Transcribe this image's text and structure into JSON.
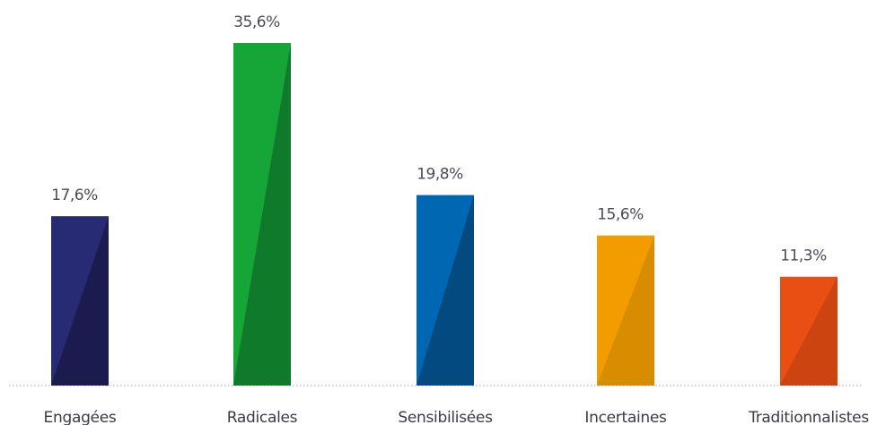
{
  "chart_data": {
    "type": "bar",
    "categories": [
      "Engagées",
      "Radicales",
      "Sensibilisées",
      "Incertaines",
      "Traditionnalistes"
    ],
    "values": [
      17.6,
      35.6,
      19.8,
      15.6,
      11.3
    ],
    "value_labels": [
      "17,6%",
      "35,6%",
      "19,8%",
      "15,6%",
      "11,3%"
    ],
    "colors": [
      "#262b73",
      "#16a637",
      "#0068b3",
      "#f39c00",
      "#e94e12"
    ],
    "shade_colors": [
      "#1b1b4f",
      "#0f7a2a",
      "#024a80",
      "#d88c00",
      "#cc4510"
    ],
    "ylim": [
      0,
      35.6
    ],
    "grid": false,
    "baseline": "dotted"
  }
}
